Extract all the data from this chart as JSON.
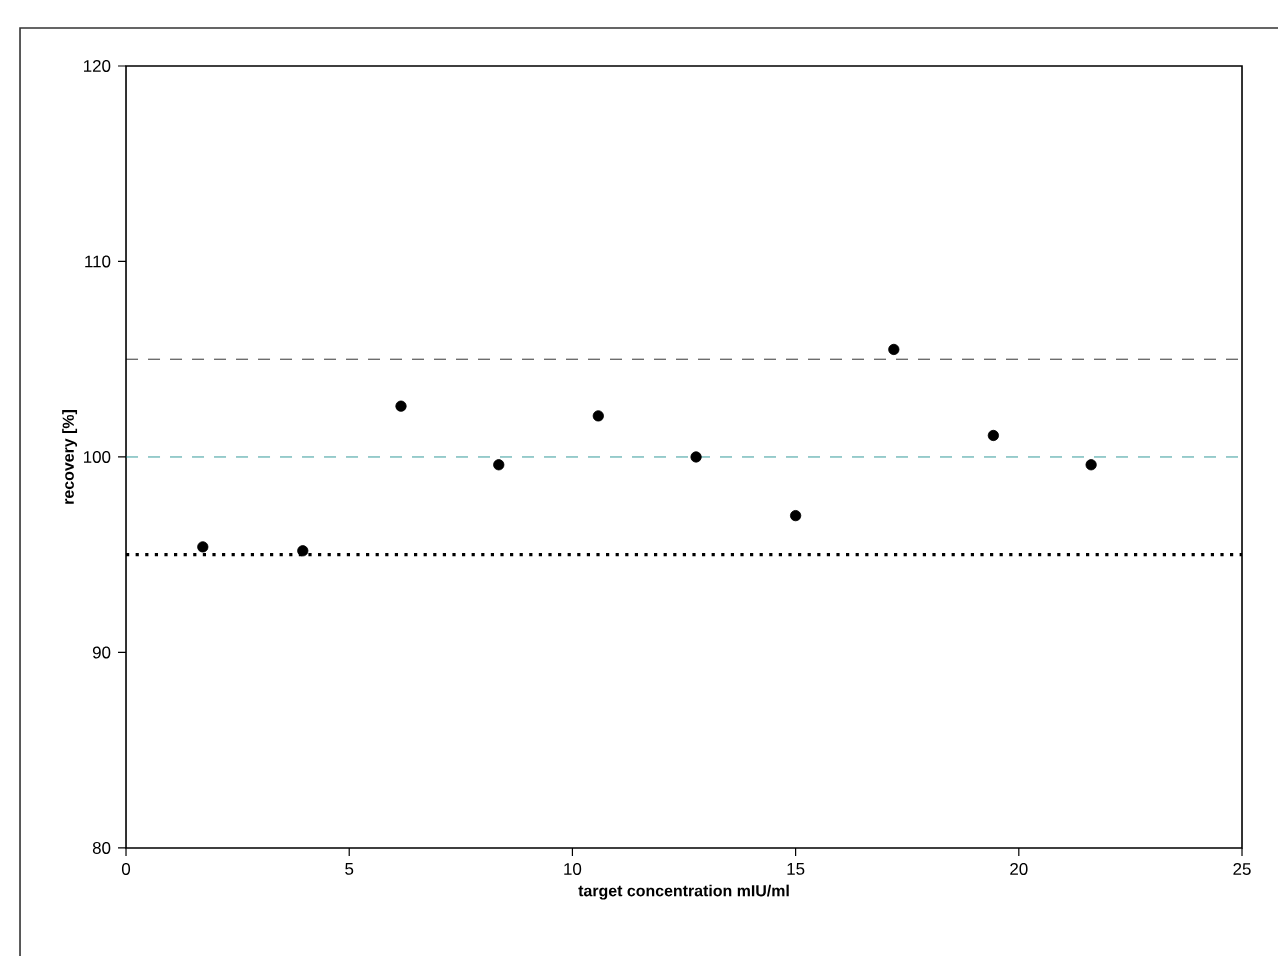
{
  "chart_data": {
    "type": "scatter",
    "xlabel": "target concentration mIU/ml",
    "ylabel": "recovery [%]",
    "x": [
      1.72,
      3.96,
      6.16,
      8.35,
      10.58,
      12.77,
      15.0,
      17.2,
      19.43,
      21.62
    ],
    "series": [
      {
        "color": "#000000",
        "values": [
          95.4,
          95.2,
          102.6,
          99.6,
          102.1,
          100.0,
          97.0,
          105.5,
          101.1,
          99.6
        ]
      }
    ],
    "xlim": [
      0,
      25
    ],
    "ylim": [
      80,
      120
    ],
    "xticks": [
      0,
      5,
      10,
      15,
      20,
      25
    ],
    "yticks": [
      80,
      90,
      100,
      110,
      120
    ],
    "ref_lines": [
      {
        "axis": "y",
        "value": 105,
        "color": "#000000",
        "line_style": "dashed"
      },
      {
        "axis": "y",
        "value": 100,
        "color": "#008080",
        "line_style": "dashed"
      },
      {
        "axis": "y",
        "value": 95,
        "color": "#000000",
        "line_style": "dotted"
      }
    ],
    "marker": "circle"
  }
}
